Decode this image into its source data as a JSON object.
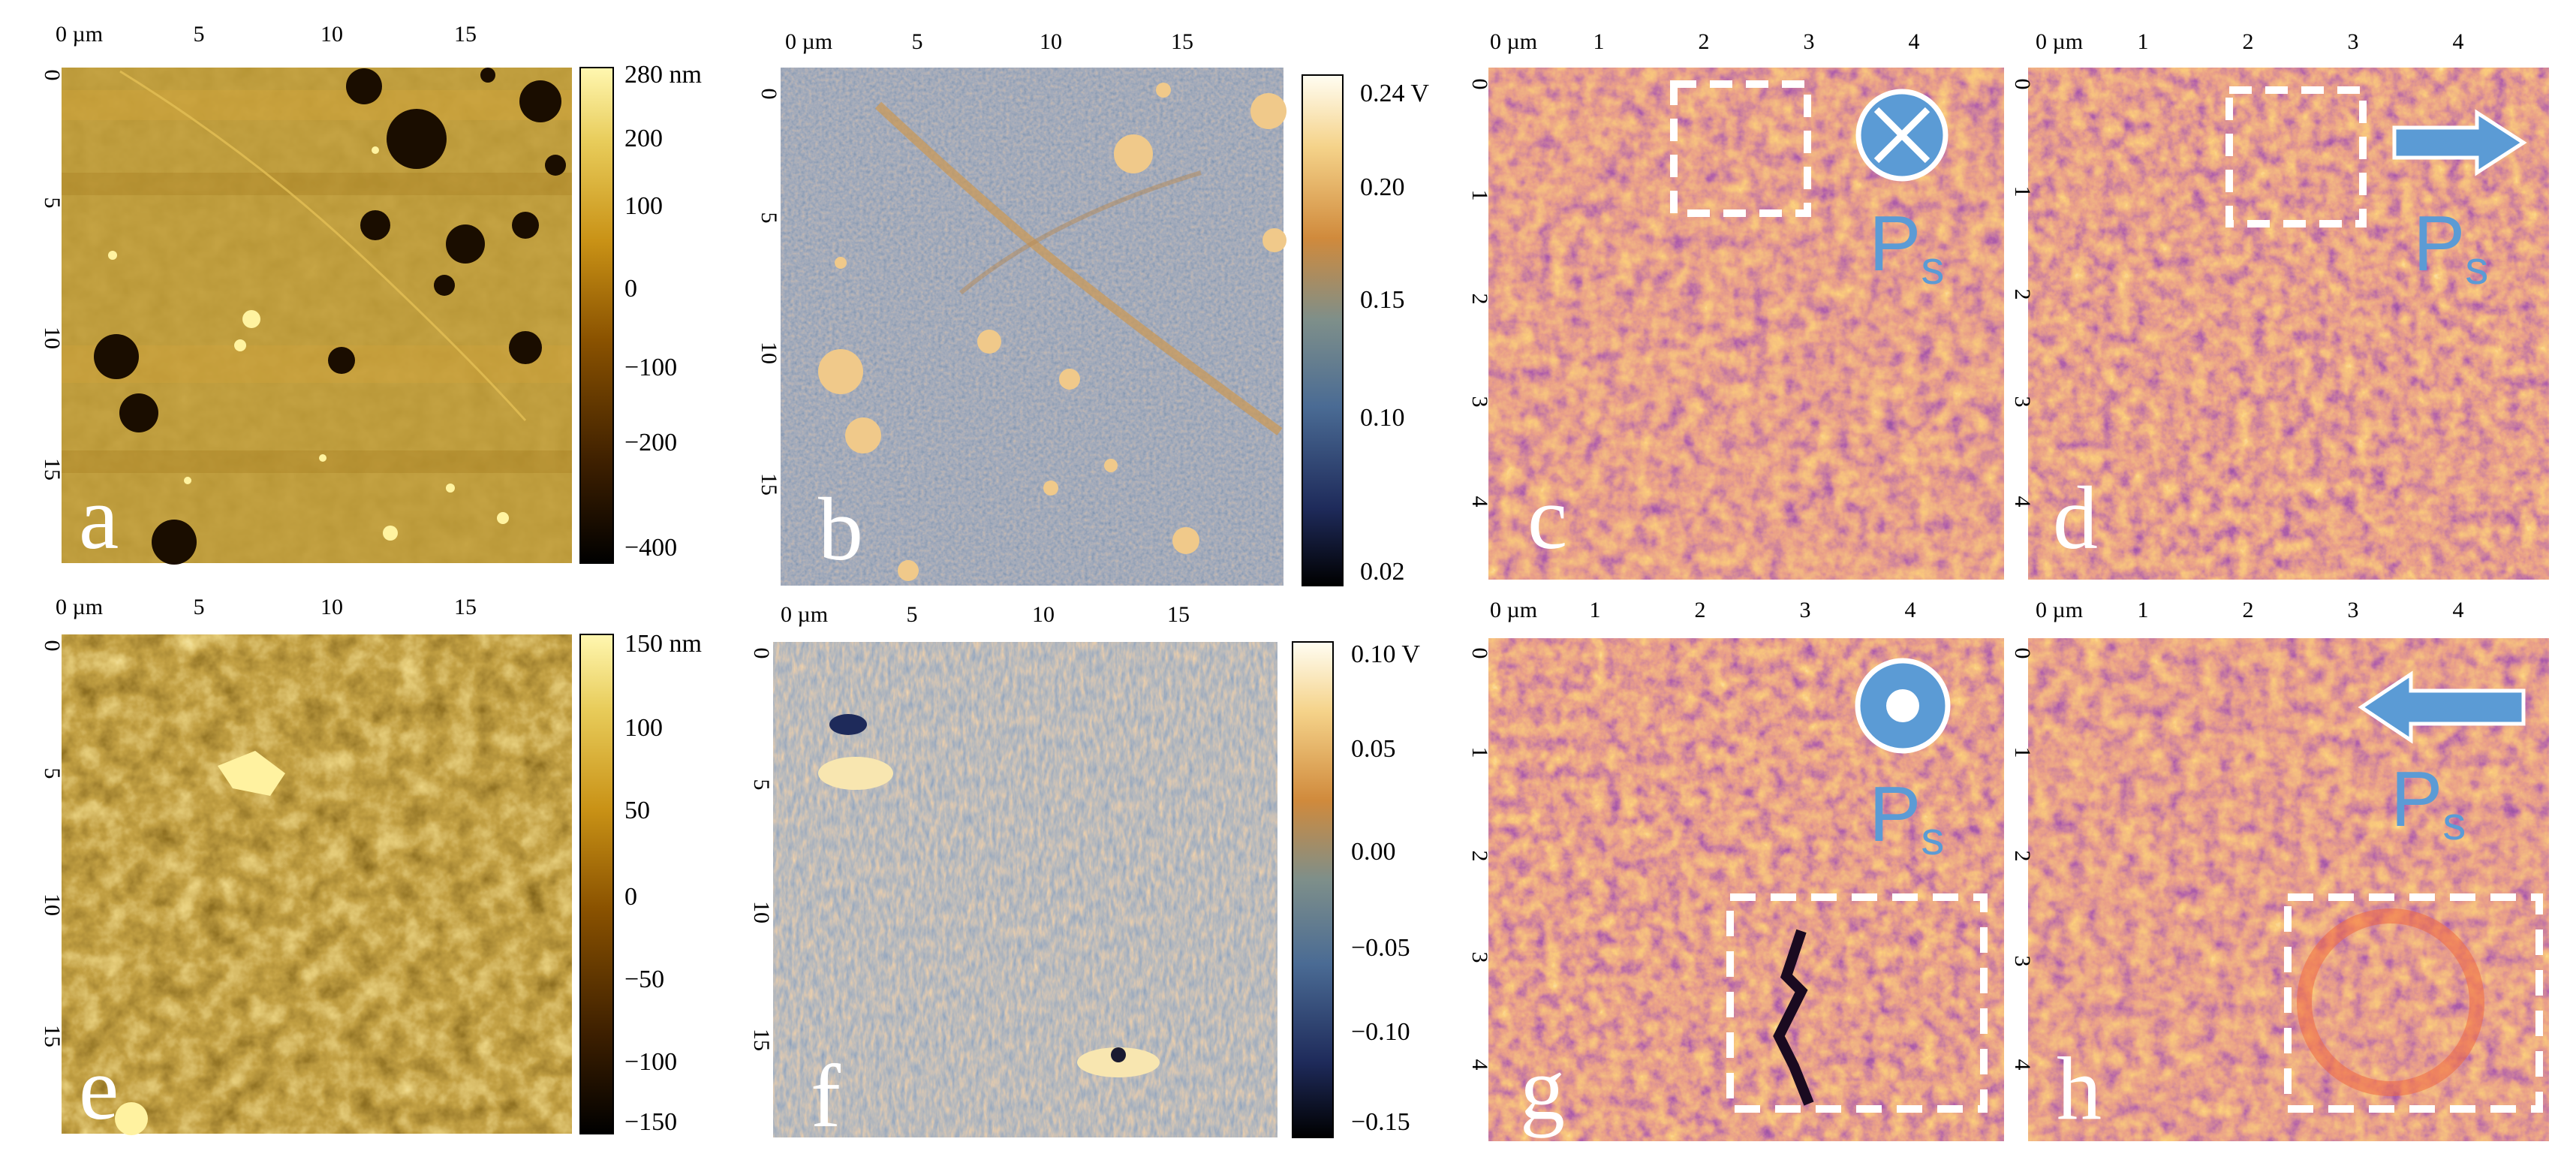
{
  "panels": [
    {
      "id": "a",
      "letter": "a",
      "palette": "afm-gold",
      "x_ticks": [
        "0 µm",
        "5",
        "10",
        "15"
      ],
      "y_ticks": [
        "0",
        "5",
        "10",
        "15"
      ],
      "colorbar": {
        "palette": "afm-gold",
        "ticks": [
          "280 nm",
          "200",
          "100",
          "0",
          "−100",
          "−200",
          "−400"
        ]
      }
    },
    {
      "id": "b",
      "letter": "b",
      "palette": "kpfm",
      "x_ticks": [
        "0 µm",
        "5",
        "10",
        "15"
      ],
      "y_ticks": [
        "0",
        "5",
        "10",
        "15"
      ],
      "colorbar": {
        "palette": "kpfm",
        "ticks": [
          "0.24 V",
          "0.20",
          "0.15",
          "0.10",
          "0.02"
        ]
      }
    },
    {
      "id": "c",
      "letter": "c",
      "palette": "pfm-inferno",
      "x_ticks": [
        "0 µm",
        "1",
        "2",
        "3",
        "4"
      ],
      "y_ticks": [
        "0",
        "1",
        "2",
        "3",
        "4"
      ],
      "polarization_symbol": "into-plane",
      "ps_label": {
        "main": "P",
        "sub": "s"
      }
    },
    {
      "id": "d",
      "letter": "d",
      "palette": "pfm-inferno",
      "x_ticks": [
        "0 µm",
        "1",
        "2",
        "3",
        "4"
      ],
      "y_ticks": [
        "0",
        "1",
        "2",
        "3",
        "4"
      ],
      "polarization_symbol": "arrow-right",
      "ps_label": {
        "main": "P",
        "sub": "s"
      }
    },
    {
      "id": "e",
      "letter": "e",
      "palette": "afm-gold",
      "x_ticks": [
        "0 µm",
        "5",
        "10",
        "15"
      ],
      "y_ticks": [
        "0",
        "5",
        "10",
        "15"
      ],
      "colorbar": {
        "palette": "afm-gold",
        "ticks": [
          "150 nm",
          "100",
          "50",
          "0",
          "−50",
          "−100",
          "−150"
        ]
      }
    },
    {
      "id": "f",
      "letter": "f",
      "palette": "kpfm",
      "x_ticks": [
        "0 µm",
        "5",
        "10",
        "15"
      ],
      "y_ticks": [
        "0",
        "5",
        "10",
        "15"
      ],
      "colorbar": {
        "palette": "kpfm",
        "ticks": [
          "0.10 V",
          "0.05",
          "0.00",
          "−0.05",
          "−0.10",
          "−0.15"
        ]
      }
    },
    {
      "id": "g",
      "letter": "g",
      "palette": "pfm-inferno",
      "x_ticks": [
        "0 µm",
        "1",
        "2",
        "3",
        "4"
      ],
      "y_ticks": [
        "0",
        "1",
        "2",
        "3",
        "4"
      ],
      "polarization_symbol": "out-of-plane",
      "ps_label": {
        "main": "P",
        "sub": "s"
      }
    },
    {
      "id": "h",
      "letter": "h",
      "palette": "pfm-inferno",
      "x_ticks": [
        "0 µm",
        "1",
        "2",
        "3",
        "4"
      ],
      "y_ticks": [
        "0",
        "1",
        "2",
        "3",
        "4"
      ],
      "polarization_symbol": "arrow-left",
      "ps_label": {
        "main": "P",
        "sub": "s"
      }
    }
  ],
  "colors": {
    "ps_blue": "#5b9bd5",
    "annotation_white": "#ffffff",
    "afm_gold": [
      "#000000",
      "#3d1f00",
      "#8a5200",
      "#c99216",
      "#e8cc5a",
      "#fff7b0"
    ],
    "kpfm": [
      "#000000",
      "#1e2a5a",
      "#4a6b94",
      "#7e8f8a",
      "#d08a3c",
      "#f5d38a",
      "#fffdf2"
    ],
    "pfm_inferno": [
      "#2a0f4d",
      "#6b1d6c",
      "#c0304f",
      "#f06a1c",
      "#ffb84a",
      "#fff0a0"
    ]
  }
}
